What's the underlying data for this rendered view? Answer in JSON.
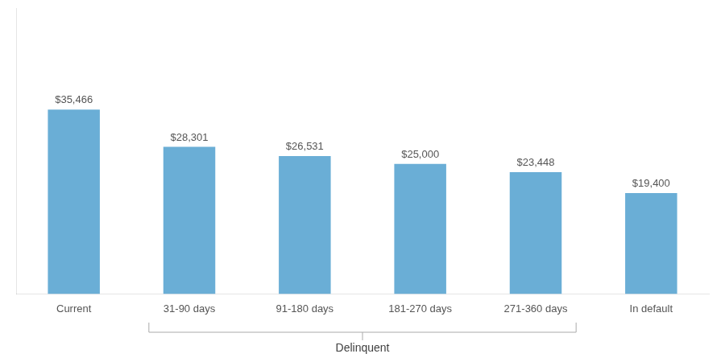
{
  "chart_data": {
    "type": "bar",
    "categories": [
      "Current",
      "31-90 days",
      "91-180 days",
      "181-270 days",
      "271-360 days",
      "In default"
    ],
    "values": [
      35466,
      28301,
      26531,
      25000,
      23448,
      19400
    ],
    "value_labels": [
      "$35,466",
      "$28,301",
      "$26,531",
      "$25,000",
      "$23,448",
      "$19,400"
    ],
    "data_labels": true,
    "color": "#6aaed6",
    "ylim": [
      0,
      55000
    ],
    "tick_labels": "x",
    "grid": false,
    "annotations": [
      {
        "text": "Delinquent",
        "from": "31-90 days",
        "to": "271-360 days"
      }
    ]
  }
}
